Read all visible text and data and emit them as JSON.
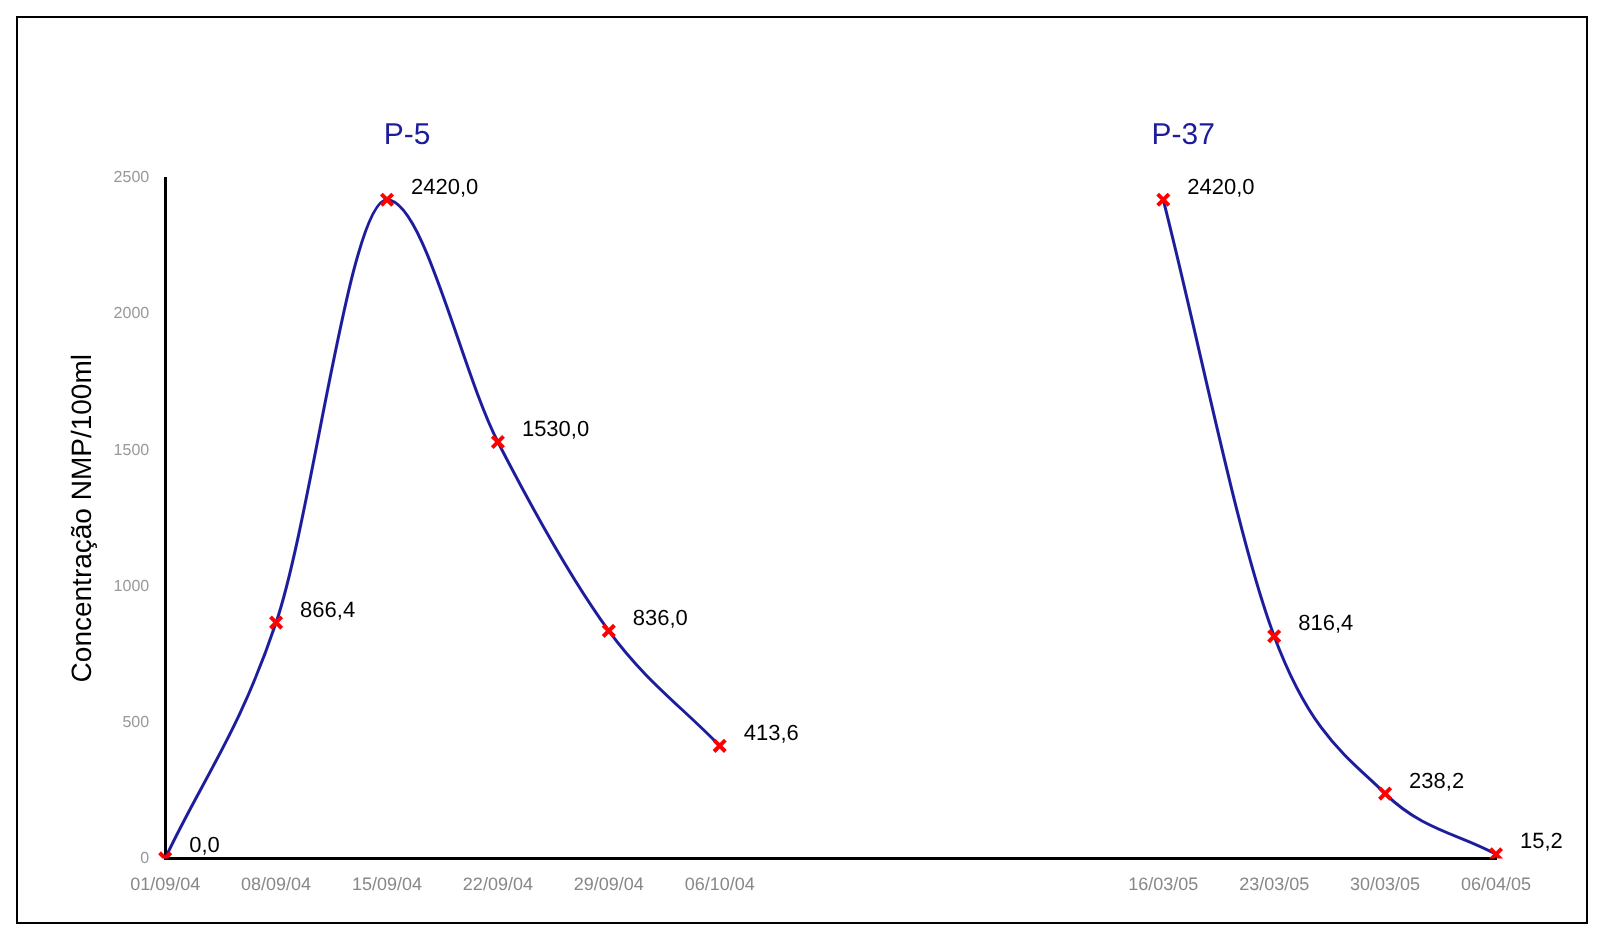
{
  "chart_data": {
    "type": "line",
    "ylabel": "Concentração NMP/100ml",
    "categories": [
      "01/09/04",
      "08/09/04",
      "15/09/04",
      "22/09/04",
      "29/09/04",
      "06/10/04",
      null,
      null,
      null,
      "16/03/05",
      "23/03/05",
      "30/03/05",
      "06/04/05"
    ],
    "series": [
      {
        "name": "P-5",
        "color": "#1c1c9c",
        "values": [
          0,
          866.4,
          2420,
          1530,
          836,
          413.6,
          null,
          null,
          null,
          null,
          null,
          null,
          null
        ],
        "value_labels": [
          "0,0",
          "866,4",
          "2420,0",
          "1530,0",
          "836,0",
          "413,6",
          null,
          null,
          null,
          null,
          null,
          null,
          null
        ]
      },
      {
        "name": "P-37",
        "color": "#1c1c9c",
        "values": [
          null,
          null,
          null,
          null,
          null,
          null,
          null,
          null,
          null,
          2420,
          816.4,
          238.2,
          15.2
        ],
        "value_labels": [
          null,
          null,
          null,
          null,
          null,
          null,
          null,
          null,
          null,
          "2420,0",
          "816,4",
          "238,2",
          "15,2"
        ]
      }
    ],
    "ylim": [
      0,
      2500
    ],
    "yticks": [
      0,
      500,
      1000,
      1500,
      2000,
      2500
    ],
    "grid": false,
    "legend": false,
    "marker": "cross",
    "line_style": "solid"
  }
}
